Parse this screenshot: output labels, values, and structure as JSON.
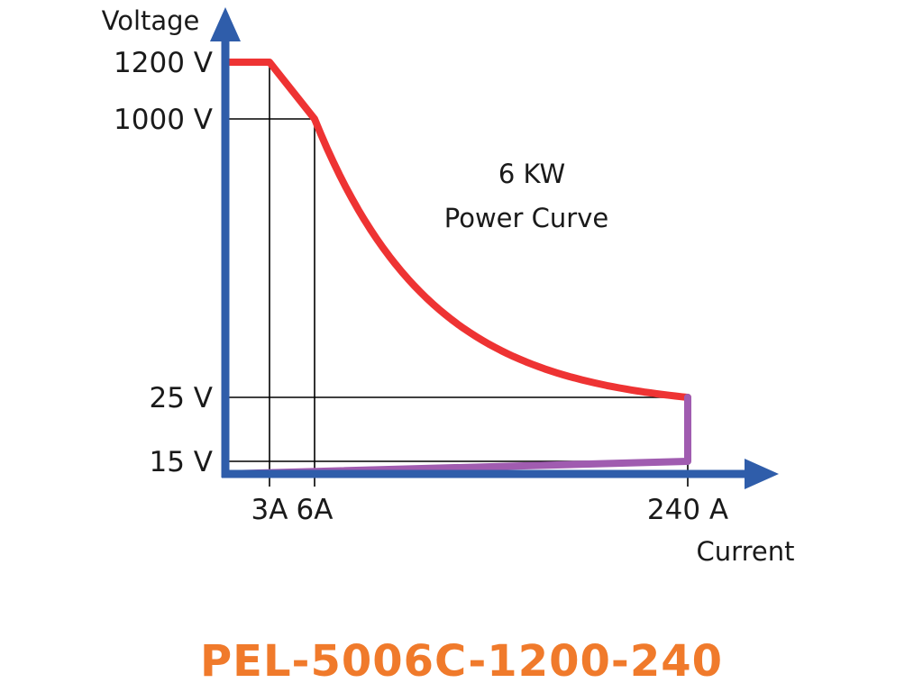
{
  "model": {
    "text": "PEL-5006C-1200-240",
    "color": "#F07A2B"
  },
  "chart_data": {
    "type": "line",
    "xlabel": "Current",
    "ylabel": "Voltage",
    "annotation": [
      "6 KW",
      "Power Curve"
    ],
    "x_ticks": [
      {
        "value": 3,
        "label": "3A"
      },
      {
        "value": 6,
        "label": "6A"
      },
      {
        "value": 240,
        "label": "240 A"
      }
    ],
    "y_ticks": [
      {
        "value": 1200,
        "label": "1200 V"
      },
      {
        "value": 1000,
        "label": "1000 V"
      },
      {
        "value": 25,
        "label": "25 V"
      },
      {
        "value": 15,
        "label": "15 V"
      }
    ],
    "power_kw": 6,
    "series": [
      {
        "color": "#EE3333",
        "points": [
          [
            0,
            1200
          ],
          [
            3,
            1200
          ],
          [
            6,
            1000
          ],
          [
            240,
            25
          ]
        ],
        "constant_power_segment": [
          6,
          240
        ]
      },
      {
        "color": "#A05CB0",
        "points": [
          [
            240,
            25
          ],
          [
            240,
            15
          ],
          [
            0,
            0
          ]
        ]
      }
    ],
    "axis_color": "#2F5DAA",
    "grid": false
  }
}
